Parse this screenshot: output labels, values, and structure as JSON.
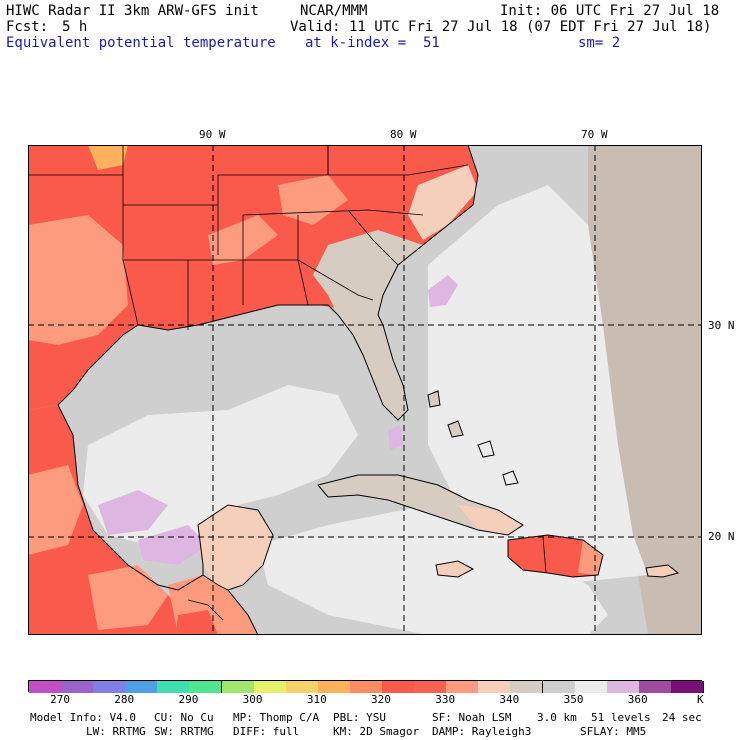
{
  "header": {
    "model": "HIWC Radar II 3km ARW-GFS init",
    "org": "NCAR/MMM",
    "init": "Init: 06 UTC Fri 27 Jul 18",
    "fcst_label": "Fcst:",
    "fcst_value": "5 h",
    "valid": "Valid: 11 UTC Fri 27 Jul 18 (07 EDT Fri 27 Jul 18)",
    "field": "Equivalent potential temperature",
    "level": "at k-index =  51",
    "smooth": "sm= 2"
  },
  "map": {
    "lon_ticks": [
      "90 W",
      "80 W",
      "70 W"
    ],
    "lat_ticks": [
      "30 N",
      "20 N"
    ],
    "colors": {
      "land_hot": "#fa5a4b",
      "land_warm": "#fc9b7e",
      "land_light": "#f6cfba",
      "land_tan": "#d6ccc1",
      "sea_gray": "#cfcfcf",
      "sea_light": "#ececec",
      "sea_purple": "#ddb6e2",
      "orange": "#fcb15a",
      "far_right": "#c9bcb3"
    }
  },
  "colorbar": {
    "labels": [
      "270",
      "280",
      "290",
      "300",
      "310",
      "320",
      "330",
      "340",
      "350",
      "360"
    ],
    "unit": "K",
    "colors": [
      "#c44ec4",
      "#9a64cc",
      "#7f7fe6",
      "#4f9fe6",
      "#3fdfaf",
      "#4fe68f",
      "#9fe66a",
      "#e6f06a",
      "#f5d26a",
      "#fcb15a",
      "#fc8c64",
      "#fa5a4b",
      "#f86050",
      "#fc9b7e",
      "#f6cfba",
      "#d6ccc1",
      "#cfcfcf",
      "#ececec",
      "#ddb6e2",
      "#a04aa0",
      "#7a0f7a"
    ]
  },
  "footer": {
    "line1": [
      "Model Info: V4.0",
      "CU: No Cu",
      "MP: Thomp C/A",
      "PBL: YSU",
      "SF: Noah LSM",
      "3.0 km",
      "51 levels",
      "24 sec"
    ],
    "line2": [
      "LW: RRTMG",
      "SW: RRTMG",
      "DIFF: full",
      "KM: 2D Smagor",
      "DAMP: Rayleigh3",
      "SFLAY: MM5"
    ]
  }
}
